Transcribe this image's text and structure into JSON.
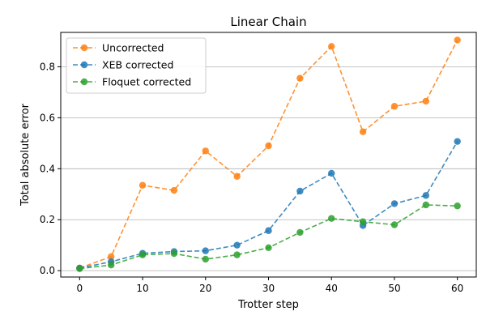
{
  "chart_data": {
    "type": "line",
    "title": "Linear Chain",
    "xlabel": "Trotter step",
    "ylabel": "Total absolute error",
    "x": [
      0,
      5,
      10,
      15,
      20,
      25,
      30,
      35,
      40,
      45,
      50,
      55,
      60
    ],
    "xlim": [
      -3,
      63
    ],
    "ylim": [
      -0.025,
      0.935
    ],
    "xticks": [
      "0",
      "10",
      "20",
      "30",
      "40",
      "50",
      "60"
    ],
    "yticks": [
      "0.0",
      "0.2",
      "0.4",
      "0.6",
      "0.8"
    ],
    "grid": "horizontal",
    "legend_position": "top-left",
    "series": [
      {
        "name": "Uncorrected",
        "color": "#ff7f0e",
        "values": [
          0.01,
          0.055,
          0.335,
          0.315,
          0.47,
          0.37,
          0.49,
          0.755,
          0.88,
          0.545,
          0.645,
          0.665,
          0.905
        ]
      },
      {
        "name": "XEB corrected",
        "color": "#1f77b4",
        "values": [
          0.01,
          0.035,
          0.068,
          0.075,
          0.078,
          0.1,
          0.157,
          0.312,
          0.382,
          0.177,
          0.263,
          0.295,
          0.507
        ]
      },
      {
        "name": "Floquet corrected",
        "color": "#2ca02c",
        "values": [
          0.008,
          0.022,
          0.062,
          0.067,
          0.045,
          0.062,
          0.09,
          0.15,
          0.205,
          0.192,
          0.18,
          0.258,
          0.254
        ]
      }
    ]
  }
}
